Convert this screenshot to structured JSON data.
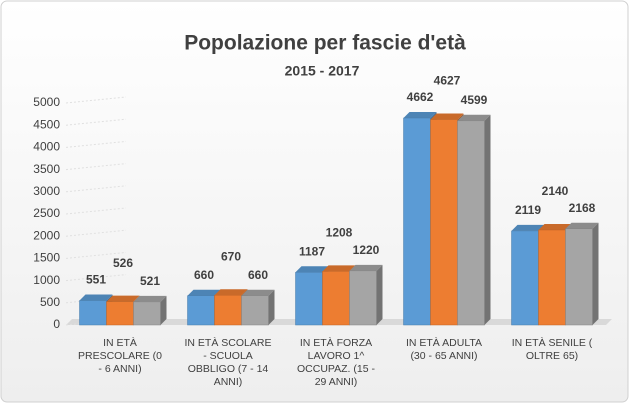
{
  "chart_data": {
    "type": "bar3d",
    "title": "Popolazione  per fascie d'età",
    "subtitle": "2015 - 2017",
    "categories": [
      [
        "IN ETÀ",
        "PRESCOLARE (0",
        "- 6 ANNI)"
      ],
      [
        "IN ETÀ SCOLARE",
        "- SCUOLA",
        "OBBLIGO (7 - 14",
        "ANNI)"
      ],
      [
        "IN ETÀ FORZA",
        "LAVORO 1^",
        "OCCUPAZ. (15 -",
        "29 ANNI)"
      ],
      [
        "IN ETÀ ADULTA",
        "(30 - 65 ANNI)"
      ],
      [
        "IN ETÀ SENILE (",
        "OLTRE 65)"
      ]
    ],
    "series": [
      {
        "color": "#5b9bd5",
        "values": [
          551,
          660,
          1187,
          4662,
          2119
        ]
      },
      {
        "color": "#ed7d31",
        "values": [
          526,
          670,
          1208,
          4627,
          2140
        ]
      },
      {
        "color": "#a5a5a5",
        "values": [
          521,
          660,
          1220,
          4599,
          2168
        ]
      }
    ],
    "ylim": [
      0,
      5000
    ],
    "yticks": [
      0,
      500,
      1000,
      1500,
      2000,
      2500,
      3000,
      3500,
      4000,
      4500,
      5000
    ],
    "grid": true
  }
}
